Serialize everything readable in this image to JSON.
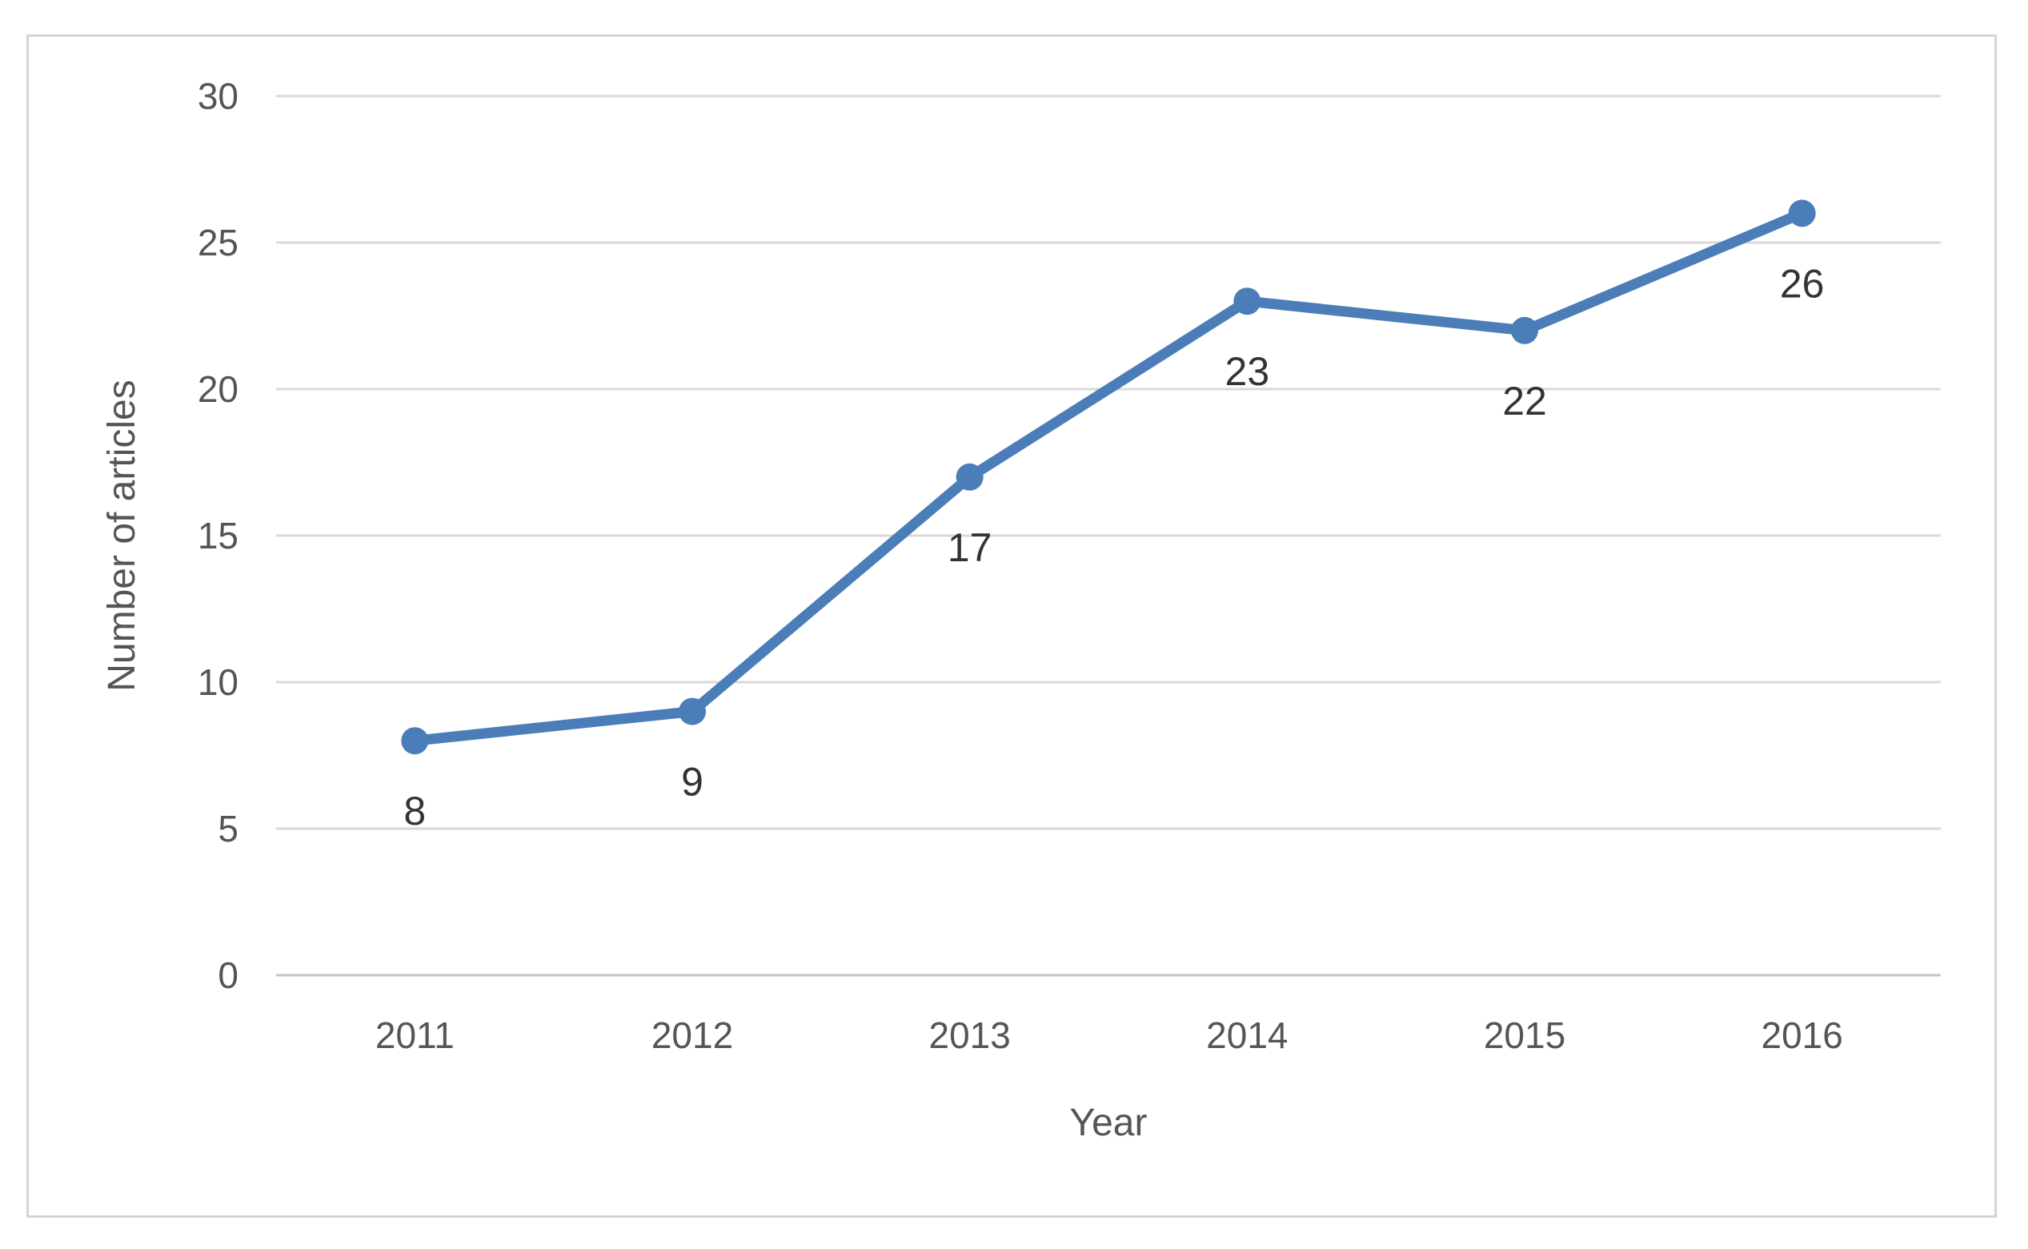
{
  "chart_data": {
    "type": "line",
    "categories": [
      "2011",
      "2012",
      "2013",
      "2014",
      "2015",
      "2016"
    ],
    "series": [
      {
        "name": "Number of articles",
        "values": [
          8,
          9,
          17,
          23,
          22,
          26
        ]
      }
    ],
    "data_labels": [
      "8",
      "9",
      "17",
      "23",
      "22",
      "26"
    ],
    "title": "",
    "xlabel": "Year",
    "ylabel": "Number of articles",
    "ylim": [
      0,
      30
    ],
    "ytick_step": 5,
    "yticks": [
      "0",
      "5",
      "10",
      "15",
      "20",
      "25",
      "30"
    ],
    "grid": "horizontal",
    "legend": "none",
    "colors": {
      "line": "#4b7db8",
      "marker": "#4b7db8",
      "gridline": "#d9d9d9",
      "zero_axis_line": "#c4c4c4",
      "axis_text": "#555555",
      "data_label_text": "#333333",
      "frame_border": "#d4d4d4",
      "background": "#ffffff"
    }
  }
}
